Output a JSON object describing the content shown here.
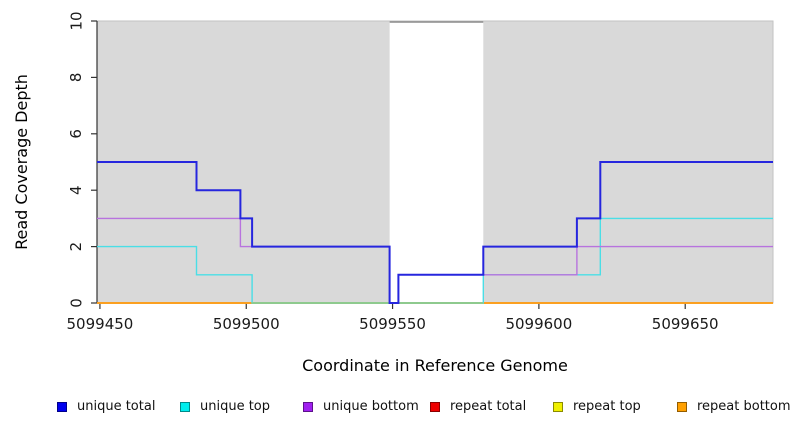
{
  "chart_data": {
    "type": "line",
    "subtype": "step-coverage",
    "title": "",
    "xlabel": "Coordinate in Reference Genome",
    "ylabel": "Read Coverage Depth",
    "xlim": [
      5099449,
      5099680
    ],
    "ylim": [
      0,
      10
    ],
    "grid": "off",
    "panel_bg_color": "#d9d9d9",
    "panel_border_color": "#c2c2c2",
    "axis_color": "#333333",
    "tick_label_color": "#1a1a1a",
    "xticks": [
      5099450,
      5099500,
      5099550,
      5099600,
      5099650
    ],
    "xtick_labels": [
      "5099450",
      "5099500",
      "5099550",
      "5099600",
      "5099650"
    ],
    "yticks": [
      0,
      2,
      4,
      6,
      8,
      10
    ],
    "ytick_labels": [
      "0",
      "2",
      "4",
      "6",
      "8",
      "10"
    ],
    "mask_region": {
      "comment": "white vertical band where background shading is absent",
      "from": 5099549,
      "to": 5099581,
      "fill": "#ffffff",
      "cap_depth": 10,
      "cap_line_color": "#8c8c8c"
    },
    "series": [
      {
        "name": "unique total",
        "line_color": "#2626de",
        "steps": [
          [
            5099449,
            5
          ],
          [
            5099483,
            4
          ],
          [
            5099498,
            3
          ],
          [
            5099502,
            2
          ],
          [
            5099549,
            0
          ],
          [
            5099552,
            1
          ],
          [
            5099581,
            2
          ],
          [
            5099613,
            3
          ],
          [
            5099621,
            5
          ],
          [
            5099680,
            5
          ]
        ]
      },
      {
        "name": "unique top",
        "line_color": "#4adee6",
        "steps": [
          [
            5099449,
            2
          ],
          [
            5099483,
            1
          ],
          [
            5099502,
            0
          ],
          [
            5099581,
            1
          ],
          [
            5099621,
            3
          ],
          [
            5099680,
            3
          ]
        ]
      },
      {
        "name": "unique bottom",
        "line_color": "#b873de",
        "steps": [
          [
            5099449,
            3
          ],
          [
            5099498,
            2
          ],
          [
            5099549,
            0
          ],
          [
            5099552,
            1
          ],
          [
            5099613,
            2
          ],
          [
            5099680,
            2
          ]
        ]
      },
      {
        "name": "repeat total",
        "line_color": "#de2626",
        "steps": [
          [
            5099449,
            0
          ],
          [
            5099680,
            0
          ]
        ]
      },
      {
        "name": "repeat top",
        "line_color": "#e8e832",
        "steps": [
          [
            5099449,
            0
          ],
          [
            5099680,
            0
          ]
        ]
      },
      {
        "name": "repeat bottom",
        "line_color": "#ff9e1a",
        "steps": [
          [
            5099449,
            0
          ],
          [
            5099680,
            0
          ]
        ]
      }
    ],
    "overlap_segment": {
      "comment": "light-green segment visible at depth 0 where top-strand lines coincide",
      "color": "#8ccb8f",
      "depth": 0,
      "from": 5099502,
      "to": 5099581
    },
    "legend": {
      "position": "bottom",
      "items": [
        {
          "label": "unique total",
          "color": "#0000ee"
        },
        {
          "label": "unique top",
          "color": "#00eeee"
        },
        {
          "label": "unique bottom",
          "color": "#a020f0"
        },
        {
          "label": "repeat total",
          "color": "#ee0000"
        },
        {
          "label": "repeat top",
          "color": "#f0f000"
        },
        {
          "label": "repeat bottom",
          "color": "#ffa000"
        }
      ]
    }
  }
}
